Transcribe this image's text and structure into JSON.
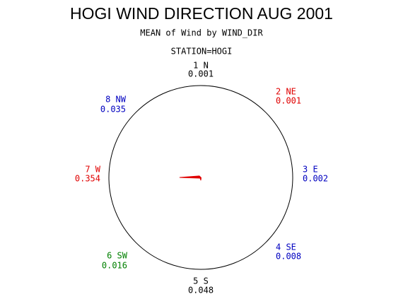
{
  "chart_data": {
    "type": "star",
    "title": "HOGI WIND DIRECTION AUG 2001",
    "subtitle": "MEAN of Wind by WIND_DIR",
    "group_label": "STATION=HOGI",
    "categories": [
      "1 N",
      "2 NE",
      "3 E",
      "4 SE",
      "5 S",
      "6 SW",
      "7 W",
      "8 NW"
    ],
    "values": [
      0.001,
      0.001,
      0.002,
      0.008,
      0.048,
      0.016,
      0.354,
      0.035
    ],
    "label_colors": [
      "#000000",
      "#e00000",
      "#0000c0",
      "#0000c0",
      "#000000",
      "#008000",
      "#e00000",
      "#0000c0"
    ],
    "color": "#e00000"
  }
}
